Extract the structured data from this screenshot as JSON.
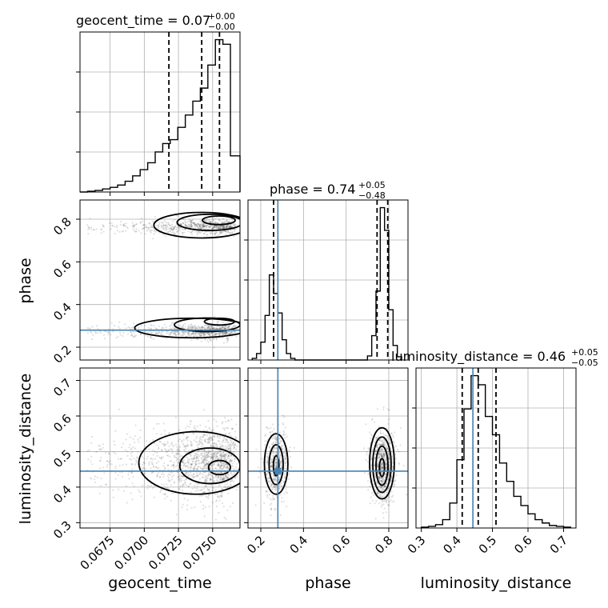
{
  "colors": {
    "truth": "#4682b4",
    "grid": "#b0b0b0",
    "points": "#000000"
  },
  "chart_data": {
    "type": "corner",
    "parameters": [
      "geocent_time",
      "phase",
      "luminosity_distance"
    ],
    "axis_labels": {
      "geocent_time": "geocent_time",
      "phase": "phase",
      "luminosity_distance": "luminosity_distance"
    },
    "titles": {
      "geocent_time": {
        "name": "geocent_time",
        "value": "0.07",
        "plus": "+0.00",
        "minus": "−0.00"
      },
      "phase": {
        "name": "phase",
        "value": "0.74",
        "plus": "+0.05",
        "minus": "−0.48"
      },
      "luminosity_distance": {
        "name": "luminosity_distance",
        "value": "0.46",
        "plus": "+0.05",
        "minus": "−0.05"
      }
    },
    "ranges": {
      "geocent_time": [
        0.0653,
        0.077
      ],
      "phase": [
        0.14,
        0.89
      ],
      "luminosity_distance": [
        0.285,
        0.735
      ]
    },
    "ticks": {
      "geocent_time": {
        "values": [
          0.0675,
          0.07,
          0.0725,
          0.075
        ],
        "labels": [
          "0.0675",
          "0.0700",
          "0.0725",
          "0.0750"
        ]
      },
      "phase": {
        "values": [
          0.2,
          0.4,
          0.6,
          0.8
        ],
        "labels": [
          "0.2",
          "0.4",
          "0.6",
          "0.8"
        ]
      },
      "luminosity_distance": {
        "values": [
          0.3,
          0.4,
          0.5,
          0.6,
          0.7
        ],
        "labels": [
          "0.3",
          "0.4",
          "0.5",
          "0.6",
          "0.7"
        ]
      }
    },
    "truths": {
      "geocent_time": null,
      "phase": 0.28,
      "luminosity_distance": 0.445
    },
    "quantiles": {
      "geocent_time": [
        0.0718,
        0.0742,
        0.0755
      ],
      "phase": [
        0.26,
        0.745,
        0.795
      ],
      "luminosity_distance": [
        0.415,
        0.46,
        0.51
      ]
    },
    "histograms": {
      "geocent_time": {
        "edges": [
          0.0653,
          0.06585,
          0.0664,
          0.06695,
          0.0675,
          0.06805,
          0.0686,
          0.06915,
          0.0697,
          0.07025,
          0.0708,
          0.07135,
          0.0719,
          0.07245,
          0.073,
          0.07355,
          0.0741,
          0.07465,
          0.0752,
          0.07575,
          0.0763,
          0.077
        ],
        "counts": [
          0,
          1,
          2,
          4,
          6,
          9,
          14,
          21,
          29,
          38,
          52,
          63,
          68,
          84,
          100,
          118,
          135,
          165,
          198,
          192,
          47
        ]
      },
      "phase": {
        "edges": [
          0.16,
          0.18,
          0.2,
          0.22,
          0.24,
          0.26,
          0.28,
          0.3,
          0.32,
          0.34,
          0.36,
          0.38,
          0.7,
          0.72,
          0.74,
          0.76,
          0.78,
          0.8,
          0.82,
          0.84,
          0.86
        ],
        "counts": [
          2,
          8,
          22,
          55,
          105,
          82,
          58,
          25,
          8,
          2,
          0,
          0,
          5,
          30,
          85,
          188,
          160,
          62,
          18,
          4
        ]
      },
      "luminosity_distance": {
        "edges": [
          0.3,
          0.32,
          0.34,
          0.36,
          0.38,
          0.4,
          0.42,
          0.44,
          0.46,
          0.48,
          0.5,
          0.52,
          0.54,
          0.56,
          0.58,
          0.6,
          0.62,
          0.64,
          0.66,
          0.68,
          0.7,
          0.72
        ],
        "counts": [
          1,
          2,
          4,
          10,
          30,
          82,
          143,
          183,
          172,
          134,
          112,
          78,
          56,
          38,
          27,
          17,
          10,
          6,
          3,
          2,
          1
        ]
      }
    },
    "density_2d": {
      "phase_vs_geocent_time": {
        "clusters": [
          {
            "x_mean": 0.0735,
            "x_sd": 0.0022,
            "x_skew": "left",
            "x_max": 0.0768,
            "y_mean": 0.275,
            "y_slope": 12.0,
            "y_sd": 0.018,
            "weight": 0.5
          },
          {
            "x_mean": 0.0735,
            "x_sd": 0.0022,
            "x_skew": "left",
            "x_max": 0.0768,
            "y_mean": 0.765,
            "y_slope": 12.0,
            "y_sd": 0.018,
            "weight": 0.5
          }
        ],
        "contours": [
          {
            "cx": 0.07545,
            "cy": 0.795,
            "rx": 0.0012,
            "ry": 0.02,
            "level": 1
          },
          {
            "cx": 0.0748,
            "cy": 0.785,
            "rx": 0.0024,
            "ry": 0.038,
            "level": 2
          },
          {
            "cx": 0.0742,
            "cy": 0.772,
            "rx": 0.0035,
            "ry": 0.06,
            "level": 3
          },
          {
            "cx": 0.0755,
            "cy": 0.32,
            "rx": 0.0011,
            "ry": 0.016,
            "level": 1
          },
          {
            "cx": 0.0746,
            "cy": 0.305,
            "rx": 0.0024,
            "ry": 0.032,
            "level": 2
          },
          {
            "cx": 0.0735,
            "cy": 0.29,
            "rx": 0.0042,
            "ry": 0.046,
            "level": 3
          }
        ]
      },
      "luminosity_distance_vs_geocent_time": {
        "clusters": [
          {
            "x_mean": 0.0735,
            "x_sd": 0.0022,
            "x_skew": "left",
            "x_max": 0.0768,
            "y_mean": 0.47,
            "y_sd": 0.05,
            "weight": 1.0
          }
        ],
        "contours": [
          {
            "cx": 0.0755,
            "cy": 0.455,
            "rx": 0.0008,
            "ry": 0.02,
            "level": 1
          },
          {
            "cx": 0.0748,
            "cy": 0.46,
            "rx": 0.0022,
            "ry": 0.05,
            "level": 2
          },
          {
            "cx": 0.0738,
            "cy": 0.468,
            "rx": 0.0042,
            "ry": 0.088,
            "level": 3
          }
        ]
      },
      "luminosity_distance_vs_phase": {
        "clusters": [
          {
            "x_mean": 0.275,
            "x_sd": 0.028,
            "y_mean": 0.46,
            "y_sd": 0.05,
            "weight": 0.38
          },
          {
            "x_mean": 0.77,
            "x_sd": 0.03,
            "y_mean": 0.46,
            "y_sd": 0.05,
            "weight": 0.62
          }
        ],
        "contours": [
          {
            "cx": 0.272,
            "cy": 0.46,
            "rx": 0.013,
            "ry": 0.028,
            "level": 1
          },
          {
            "cx": 0.272,
            "cy": 0.463,
            "rx": 0.033,
            "ry": 0.056,
            "level": 2
          },
          {
            "cx": 0.272,
            "cy": 0.465,
            "rx": 0.055,
            "ry": 0.085,
            "level": 3
          },
          {
            "cx": 0.768,
            "cy": 0.455,
            "rx": 0.012,
            "ry": 0.025,
            "level": 1
          },
          {
            "cx": 0.768,
            "cy": 0.46,
            "rx": 0.028,
            "ry": 0.055,
            "level": 2
          },
          {
            "cx": 0.768,
            "cy": 0.463,
            "rx": 0.043,
            "ry": 0.078,
            "level": 3
          },
          {
            "cx": 0.768,
            "cy": 0.467,
            "rx": 0.058,
            "ry": 0.1,
            "level": 4
          }
        ]
      }
    },
    "grid": true,
    "scatter": true
  }
}
